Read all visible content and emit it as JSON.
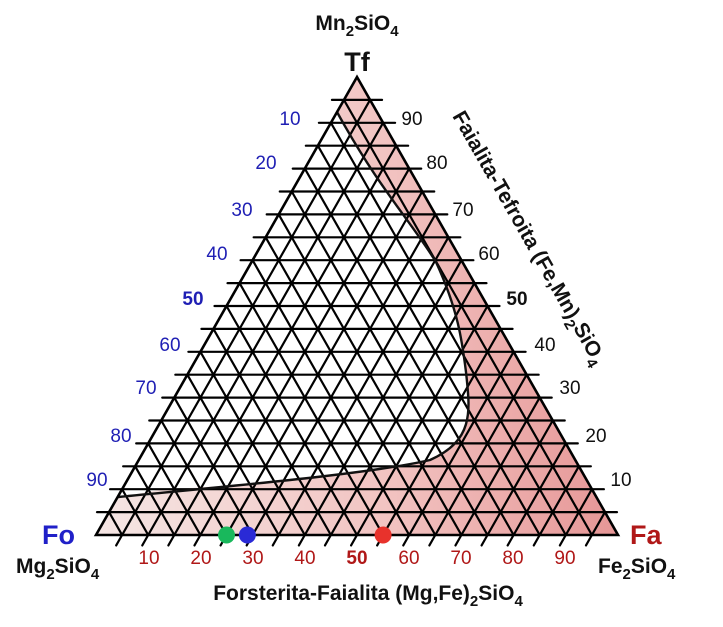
{
  "vertices": {
    "top": {
      "label": "Tf",
      "formula": "Mn",
      "formula_sub1": "2",
      "formula_mid": "SiO",
      "formula_sub2": "4"
    },
    "left": {
      "label": "Fo",
      "formula": "Mg",
      "formula_sub1": "2",
      "formula_mid": "SiO",
      "formula_sub2": "4"
    },
    "right": {
      "label": "Fa",
      "formula": "Fe",
      "formula_sub1": "2",
      "formula_mid": "SiO",
      "formula_sub2": "4"
    }
  },
  "axes": {
    "bottom_title": {
      "text": "Forsterita-Faialita (Mg,Fe)",
      "sub1": "2",
      "mid": "SiO",
      "sub2": "4"
    },
    "right_title": {
      "text": "Faialita-Tefroita (Fe,Mn)",
      "sub1": "2",
      "mid": "SiO",
      "sub2": "4"
    },
    "left_ticks": [
      "10",
      "20",
      "30",
      "40",
      "50",
      "60",
      "70",
      "80",
      "90"
    ],
    "right_ticks": [
      "90",
      "80",
      "70",
      "60",
      "50",
      "40",
      "30",
      "20",
      "10"
    ],
    "bottom_ticks": [
      "10",
      "20",
      "30",
      "40",
      "50",
      "60",
      "70",
      "80",
      "90"
    ],
    "bold_tick": "50"
  },
  "points": [
    {
      "name": "green",
      "fa_percent": 25,
      "color": "#19b85c"
    },
    {
      "name": "blue",
      "fa_percent": 29,
      "color": "#2a2ad6"
    },
    {
      "name": "red",
      "fa_percent": 55,
      "color": "#e8322c"
    }
  ],
  "colors": {
    "shade_light": "#f6e4e2",
    "shade_dark": "#e89a9a",
    "grid": "#000000",
    "left_ticks": "#1f1fb4",
    "bottom_ticks": "#b01818"
  }
}
